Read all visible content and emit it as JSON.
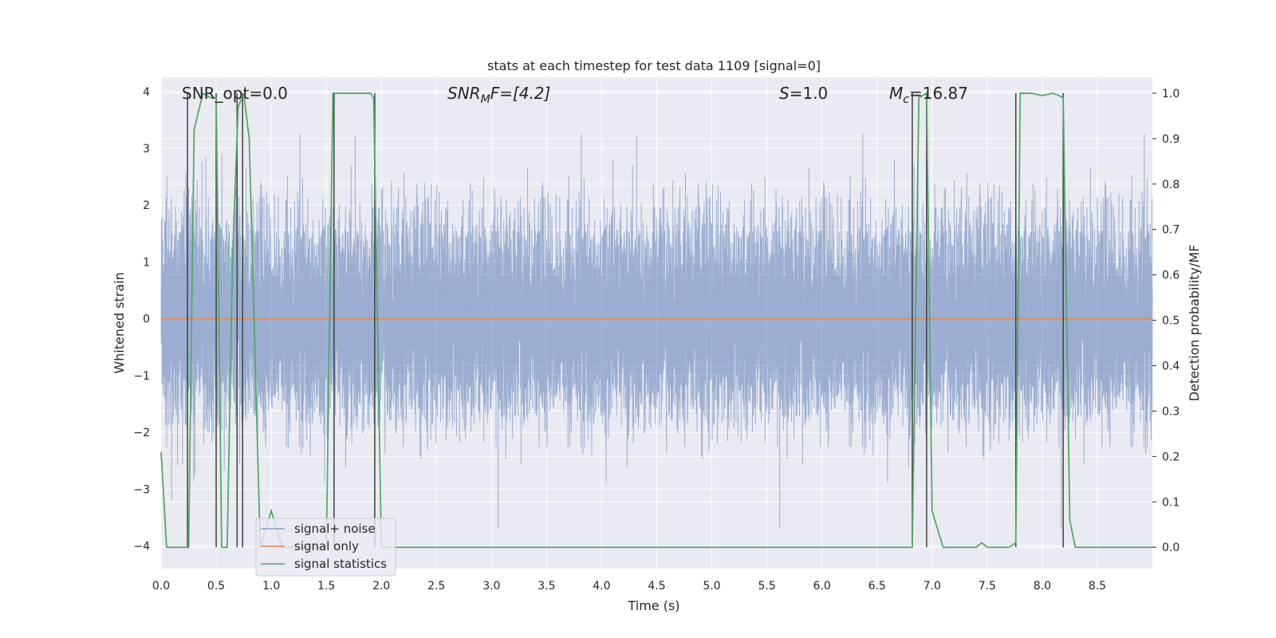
{
  "chart_data": {
    "type": "line",
    "title": "stats at each timestep for test data 1109 [signal=0]",
    "xlabel": "Time (s)",
    "ylabel_left": "Whitened strain",
    "ylabel_right": "Detection probability/MF",
    "xlim": [
      0.0,
      9.0
    ],
    "ylim_left": [
      -4.4,
      4.25
    ],
    "ylim_right": [
      -0.047,
      1.035
    ],
    "xticks": [
      "0.0",
      "0.5",
      "1.0",
      "1.5",
      "2.0",
      "2.5",
      "3.0",
      "3.5",
      "4.0",
      "4.5",
      "5.0",
      "5.5",
      "6.0",
      "6.5",
      "7.0",
      "7.5",
      "8.0",
      "8.5"
    ],
    "yticks_left": [
      "4",
      "3",
      "2",
      "1",
      "0",
      "−1",
      "−2",
      "−3",
      "−4"
    ],
    "yticks_right": [
      "1.0",
      "0.9",
      "0.8",
      "0.7",
      "0.6",
      "0.5",
      "0.4",
      "0.3",
      "0.2",
      "0.1",
      "0.0"
    ],
    "grid": true,
    "annotations": {
      "snr_opt": "SNR_opt=0.0",
      "snr_mf_sym": "SNR",
      "snr_mf_sub": "M",
      "snr_mf_rest": "F=[4.2]",
      "s_sym": "S",
      "s_rest": "=1.0",
      "mc_sym": "M",
      "mc_sub": "c",
      "mc_rest": "=16.87"
    },
    "legend": {
      "position": "lower-left",
      "entries": [
        "signal+ noise",
        "signal only",
        "signal statistics"
      ]
    },
    "colors": {
      "noise": "#4c72b0",
      "signal": "#dd8452",
      "stats": "#55a868",
      "vlines": "#404040",
      "background": "#eaeaf2",
      "grid": "#ffffff"
    },
    "series": [
      {
        "name": "signal+ noise",
        "axis": "left",
        "description": "whitened strain, approx. Gaussian noise, sigma ~0.85, 2048 samples/s"
      },
      {
        "name": "signal only",
        "axis": "left",
        "x": [
          0.0,
          9.0
        ],
        "y": [
          0.0,
          0.0
        ]
      },
      {
        "name": "signal statistics",
        "axis": "right",
        "x": [
          0.0,
          0.05,
          0.25,
          0.3,
          0.38,
          0.45,
          0.5,
          0.55,
          0.6,
          0.65,
          0.7,
          0.75,
          0.8,
          0.9,
          1.0,
          1.05,
          1.1,
          1.2,
          1.5,
          1.56,
          1.62,
          1.8,
          1.9,
          1.93,
          2.0,
          2.05,
          2.1,
          2.5,
          3.0,
          4.0,
          5.0,
          6.0,
          6.5,
          6.82,
          6.88,
          6.95,
          7.0,
          7.1,
          7.3,
          7.4,
          7.45,
          7.5,
          7.7,
          7.76,
          7.8,
          7.9,
          8.0,
          8.1,
          8.15,
          8.19,
          8.25,
          8.3,
          9.0
        ],
        "y": [
          0.21,
          0.0,
          0.0,
          0.92,
          1.0,
          0.99,
          0.99,
          0.0,
          0.0,
          0.65,
          0.97,
          1.0,
          0.9,
          0.0,
          0.08,
          0.04,
          0.0,
          0.0,
          0.0,
          1.0,
          1.0,
          1.0,
          1.0,
          0.99,
          0.0,
          0.0,
          0.0,
          0.0,
          0.0,
          0.0,
          0.0,
          0.0,
          0.0,
          0.0,
          0.99,
          1.0,
          0.08,
          0.0,
          0.0,
          0.0,
          0.01,
          0.0,
          0.0,
          0.01,
          1.0,
          1.0,
          0.995,
          1.0,
          0.995,
          0.99,
          0.06,
          0.0,
          0.0
        ]
      }
    ],
    "vlines_x": [
      0.24,
      0.5,
      0.69,
      0.74,
      1.57,
      1.94,
      6.82,
      6.95,
      7.76,
      8.19
    ]
  }
}
